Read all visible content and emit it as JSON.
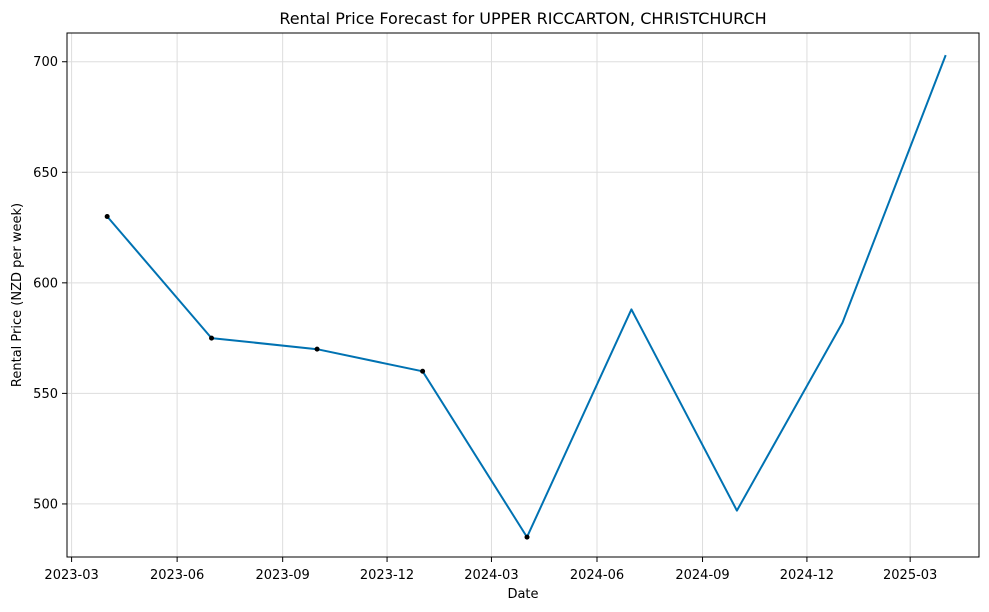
{
  "chart_data": {
    "type": "line",
    "title": "Rental Price Forecast for UPPER RICCARTON, CHRISTCHURCH",
    "xlabel": "Date",
    "ylabel": "Rental Price (NZD per week)",
    "x_ticks": [
      "2023-03",
      "2023-06",
      "2023-09",
      "2023-12",
      "2024-03",
      "2024-06",
      "2024-09",
      "2024-12",
      "2025-03"
    ],
    "y_ticks": [
      500,
      550,
      600,
      650,
      700
    ],
    "xlim": [
      "2023-02-25",
      "2025-04-30"
    ],
    "ylim": [
      476,
      713
    ],
    "grid": true,
    "series": [
      {
        "color": "#0072B2",
        "points": [
          {
            "x": "2023-04-01",
            "y": 630
          },
          {
            "x": "2023-07-01",
            "y": 575
          },
          {
            "x": "2023-10-01",
            "y": 570
          },
          {
            "x": "2024-01-01",
            "y": 560
          },
          {
            "x": "2024-04-01",
            "y": 485
          },
          {
            "x": "2024-07-01",
            "y": 588
          },
          {
            "x": "2024-10-01",
            "y": 497
          },
          {
            "x": "2025-01-01",
            "y": 582
          },
          {
            "x": "2025-04-01",
            "y": 703
          }
        ]
      }
    ],
    "observed_points": [
      {
        "x": "2023-04-01",
        "y": 630
      },
      {
        "x": "2023-07-01",
        "y": 575
      },
      {
        "x": "2023-10-01",
        "y": 570
      },
      {
        "x": "2024-01-01",
        "y": 560
      },
      {
        "x": "2024-04-01",
        "y": 485
      }
    ],
    "observed_color": "#000000"
  }
}
